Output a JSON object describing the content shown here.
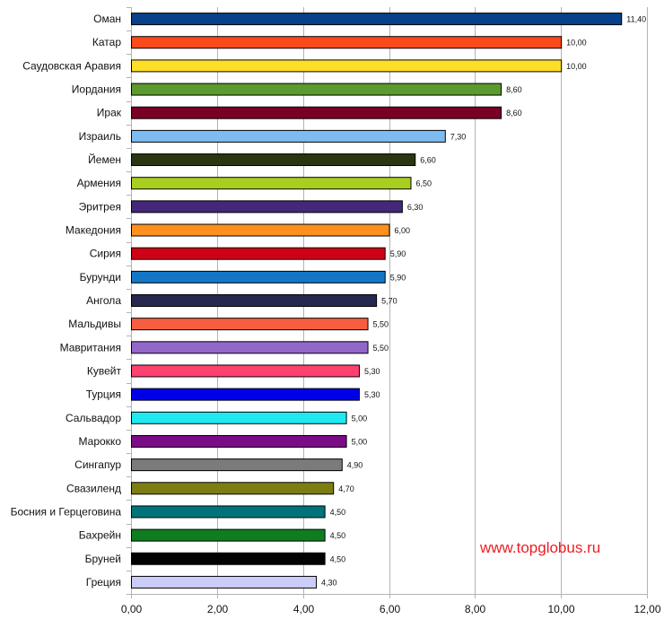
{
  "chart_data": {
    "type": "bar",
    "orientation": "horizontal",
    "categories": [
      "Оман",
      "Катар",
      "Саудовская Аравия",
      "Иордания",
      "Ирак",
      "Израиль",
      "Йемен",
      "Армения",
      "Эритрея",
      "Македония",
      "Сирия",
      "Бурунди",
      "Ангола",
      "Мальдивы",
      "Мавритания",
      "Кувейт",
      "Турция",
      "Сальвадор",
      "Марокко",
      "Сингапур",
      "Свазиленд",
      "Босния и Герцеговина",
      "Бахрейн",
      "Бруней",
      "Греция"
    ],
    "values": [
      11.4,
      10.0,
      10.0,
      8.6,
      8.6,
      7.3,
      6.6,
      6.5,
      6.3,
      6.0,
      5.9,
      5.9,
      5.7,
      5.5,
      5.5,
      5.3,
      5.3,
      5.0,
      5.0,
      4.9,
      4.7,
      4.5,
      4.5,
      4.5,
      4.3
    ],
    "value_labels": [
      "11,40",
      "10,00",
      "10,00",
      "8,60",
      "8,60",
      "7,30",
      "6,60",
      "6,50",
      "6,30",
      "6,00",
      "5,90",
      "5,90",
      "5,70",
      "5,50",
      "5,50",
      "5,30",
      "5,30",
      "5,00",
      "5,00",
      "4,90",
      "4,70",
      "4,50",
      "4,50",
      "4,50",
      "4,30"
    ],
    "colors": [
      "#06418a",
      "#fb4a1b",
      "#ffde28",
      "#5b9a2e",
      "#780025",
      "#7cbcf1",
      "#2a3612",
      "#a8cf1f",
      "#44277a",
      "#ff901e",
      "#d10016",
      "#1476c7",
      "#262851",
      "#f55f40",
      "#9267c9",
      "#ff4170",
      "#0000e8",
      "#1fe8f0",
      "#7b0c85",
      "#7b7b7b",
      "#7d7e12",
      "#00737a",
      "#0f7c1f",
      "#030303",
      "#cbcdf8"
    ],
    "xlim": [
      0,
      12
    ],
    "x_ticks": [
      "0,00",
      "2,00",
      "4,00",
      "6,00",
      "8,00",
      "10,00",
      "12,00"
    ],
    "grid": true,
    "legend": "none"
  },
  "watermark": "www.topglobus.ru"
}
